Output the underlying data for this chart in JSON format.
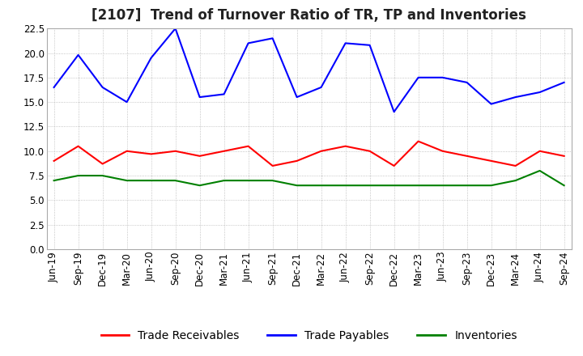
{
  "title": "[2107]  Trend of Turnover Ratio of TR, TP and Inventories",
  "ylim": [
    0.0,
    22.5
  ],
  "yticks": [
    0.0,
    2.5,
    5.0,
    7.5,
    10.0,
    12.5,
    15.0,
    17.5,
    20.0,
    22.5
  ],
  "labels": [
    "Jun-19",
    "Sep-19",
    "Dec-19",
    "Mar-20",
    "Jun-20",
    "Sep-20",
    "Dec-20",
    "Mar-21",
    "Jun-21",
    "Sep-21",
    "Dec-21",
    "Mar-22",
    "Jun-22",
    "Sep-22",
    "Dec-22",
    "Mar-23",
    "Jun-23",
    "Sep-23",
    "Dec-23",
    "Mar-24",
    "Jun-24",
    "Sep-24"
  ],
  "trade_receivables": [
    9.0,
    10.5,
    8.7,
    10.0,
    9.7,
    10.0,
    9.5,
    10.0,
    10.5,
    8.5,
    9.0,
    10.0,
    10.5,
    10.0,
    8.5,
    11.0,
    10.0,
    9.5,
    9.0,
    8.5,
    10.0,
    9.5
  ],
  "trade_payables": [
    16.5,
    19.8,
    16.5,
    15.0,
    19.5,
    22.5,
    15.5,
    15.8,
    21.0,
    21.5,
    15.5,
    16.5,
    21.0,
    20.8,
    14.0,
    17.5,
    17.5,
    17.0,
    14.8,
    15.5,
    16.0,
    17.0
  ],
  "inventories": [
    7.0,
    7.5,
    7.5,
    7.0,
    7.0,
    7.0,
    6.5,
    7.0,
    7.0,
    7.0,
    6.5,
    6.5,
    6.5,
    6.5,
    6.5,
    6.5,
    6.5,
    6.5,
    6.5,
    7.0,
    8.0,
    6.5
  ],
  "tr_color": "#ff0000",
  "tp_color": "#0000ff",
  "inv_color": "#008000",
  "legend_labels": [
    "Trade Receivables",
    "Trade Payables",
    "Inventories"
  ],
  "background_color": "#ffffff",
  "grid_color": "#999999",
  "title_fontsize": 12,
  "tick_fontsize": 8.5,
  "legend_fontsize": 10
}
